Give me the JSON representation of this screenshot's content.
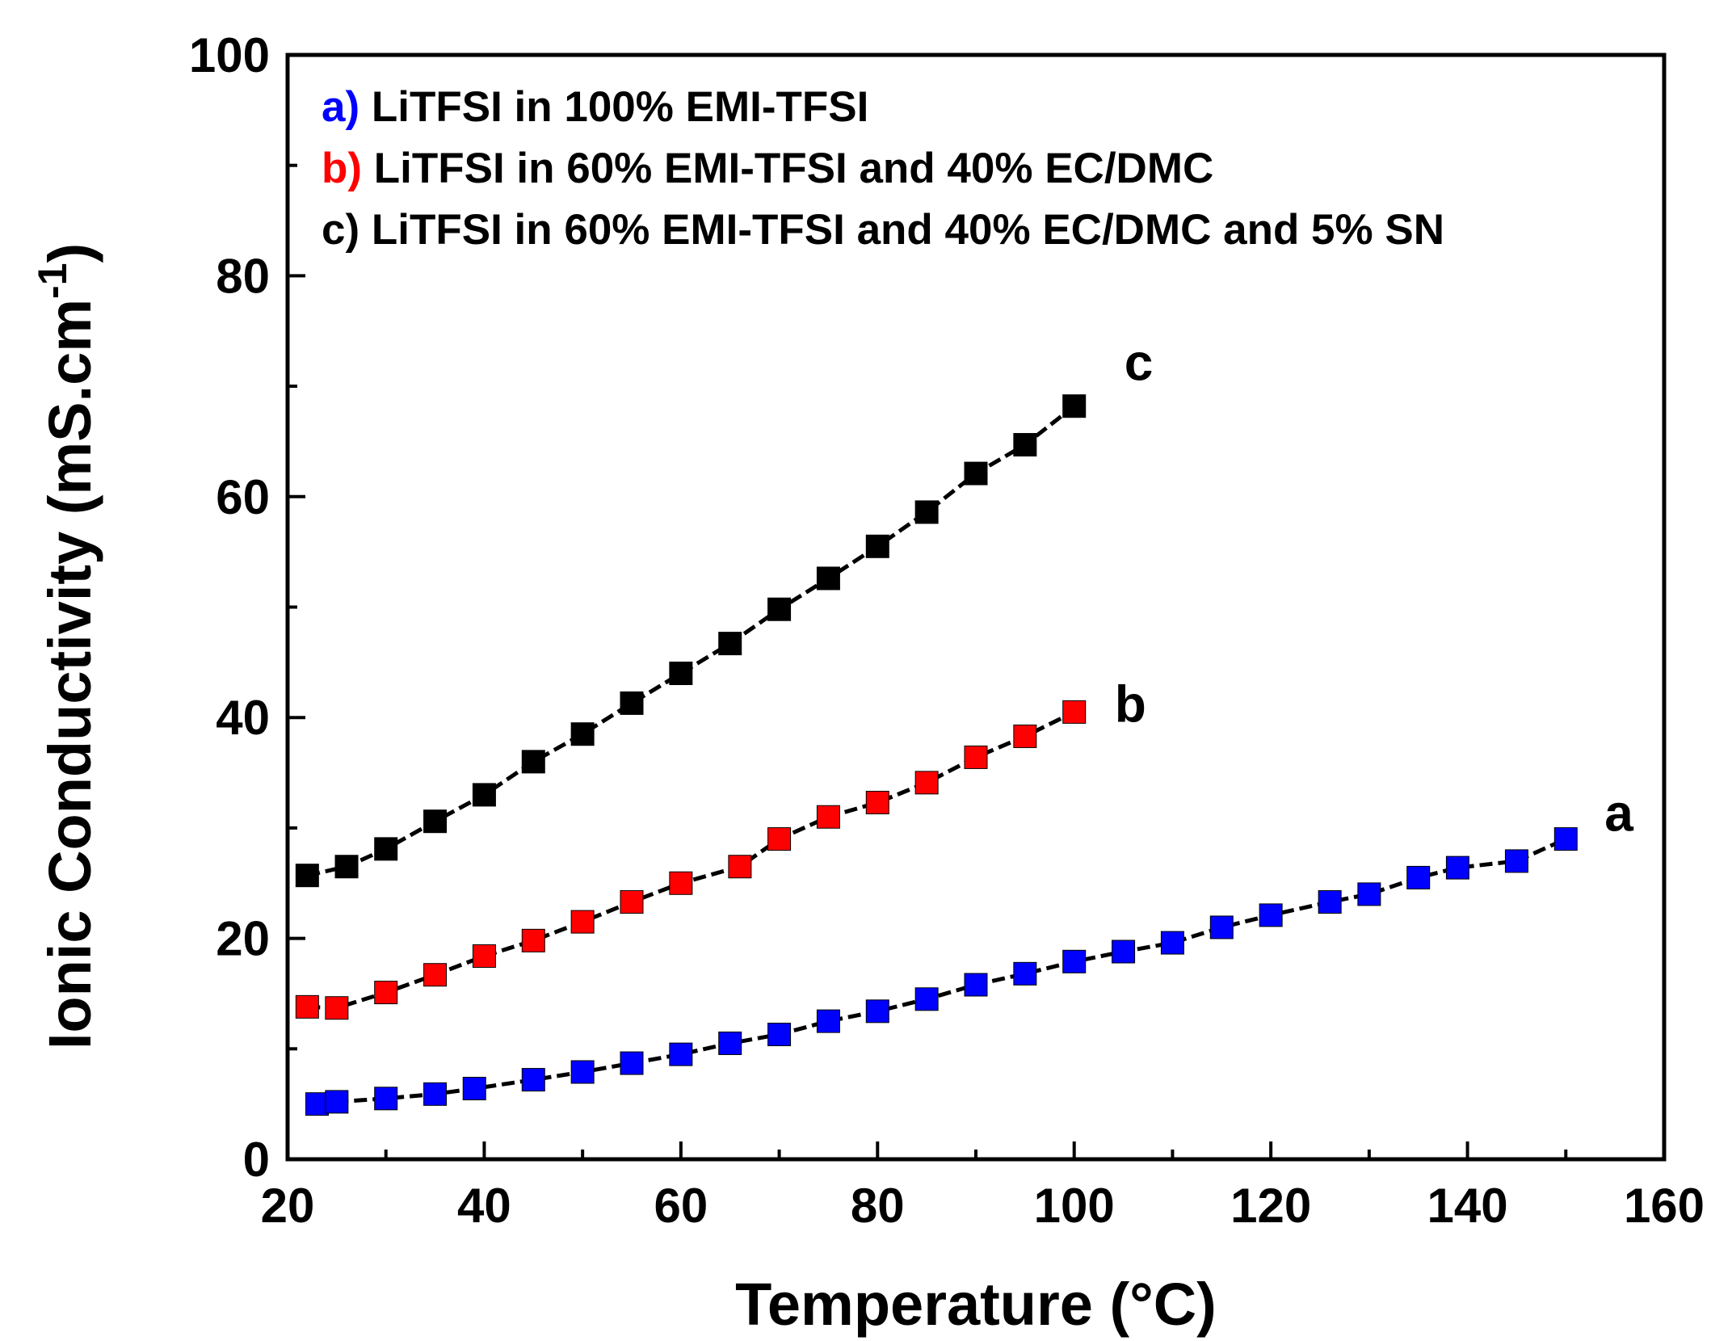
{
  "chart_data": {
    "type": "scatter",
    "xlabel": "Temperature (°C)",
    "ylabel_main": "Ionic Conductivity (mS.cm",
    "ylabel_sup": "-1",
    "ylabel_close": ")",
    "xlim": [
      20,
      160
    ],
    "ylim": [
      0,
      100
    ],
    "xticks": [
      20,
      40,
      60,
      80,
      100,
      120,
      140,
      160
    ],
    "yticks": [
      0,
      20,
      40,
      60,
      80,
      100
    ],
    "legend": [
      {
        "key": "a)",
        "text": " LiTFSI in 100% EMI-TFSI",
        "color": "#0000ff"
      },
      {
        "key": "b)",
        "text": " LiTFSI in 60% EMI-TFSI and 40% EC/DMC",
        "color": "#ff0000"
      },
      {
        "key": "c)",
        "text": " LiTFSI in 60% EMI-TFSI and 40% EC/DMC and 5% SN",
        "color": "#000000"
      }
    ],
    "series": [
      {
        "name": "a",
        "label": "a",
        "color": "#0000ff",
        "x": [
          23,
          25,
          30,
          35,
          39,
          45,
          50,
          55,
          60,
          65,
          70,
          75,
          80,
          85,
          90,
          95,
          100,
          105,
          110,
          115,
          120,
          126,
          130,
          135,
          139,
          145,
          150
        ],
        "y": [
          5.0,
          5.2,
          5.5,
          5.9,
          6.4,
          7.2,
          7.9,
          8.7,
          9.5,
          10.5,
          11.3,
          12.5,
          13.4,
          14.5,
          15.8,
          16.8,
          17.9,
          18.8,
          19.6,
          21.0,
          22.1,
          23.3,
          24.0,
          25.5,
          26.4,
          27.0,
          29.0
        ]
      },
      {
        "name": "b",
        "label": "b",
        "color": "#ff0000",
        "x": [
          22,
          25,
          30,
          35,
          40,
          45,
          50,
          55,
          60,
          66,
          70,
          75,
          80,
          85,
          90,
          95,
          100
        ],
        "y": [
          13.8,
          13.7,
          15.1,
          16.7,
          18.4,
          19.8,
          21.5,
          23.3,
          25.0,
          26.5,
          29.0,
          31.0,
          32.3,
          34.1,
          36.4,
          38.3,
          40.5
        ]
      },
      {
        "name": "c",
        "label": "c",
        "color": "#000000",
        "x": [
          22,
          26,
          30,
          35,
          40,
          45,
          50,
          55,
          60,
          65,
          70,
          75,
          80,
          85,
          90,
          95,
          100
        ],
        "y": [
          25.7,
          26.5,
          28.1,
          30.6,
          33.0,
          36.0,
          38.5,
          41.3,
          44.0,
          46.7,
          49.8,
          52.6,
          55.5,
          58.6,
          62.1,
          64.7,
          68.2
        ]
      }
    ]
  }
}
